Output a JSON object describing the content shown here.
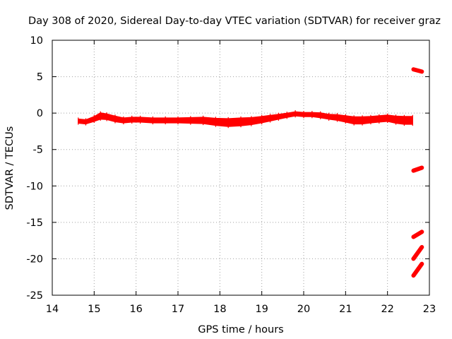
{
  "chart_data": {
    "type": "scatter",
    "title": "Day 308 of 2020, Sidereal Day-to-day VTEC variation (SDTVAR) for receiver graz",
    "xlabel": "GPS time / hours",
    "ylabel": "SDTVAR / TECUs",
    "xlim": [
      14,
      23
    ],
    "ylim": [
      -25,
      10
    ],
    "xticks": [
      14,
      15,
      16,
      17,
      18,
      19,
      20,
      21,
      22,
      23
    ],
    "yticks": [
      10,
      5,
      0,
      -5,
      -10,
      -15,
      -20,
      -25
    ],
    "xtick_labels": [
      "14",
      "15",
      "16",
      "17",
      "18",
      "19",
      "20",
      "21",
      "22",
      "23"
    ],
    "ytick_labels": [
      "10",
      "5",
      "0",
      "-5",
      "-10",
      "-15",
      "-20",
      "-25"
    ],
    "grid": true,
    "grid_style": "dotted",
    "marker_color": "#ff0000",
    "series": [
      {
        "name": "main band",
        "x": [
          14.62,
          14.8,
          15.0,
          15.15,
          15.3,
          15.5,
          15.7,
          15.9,
          16.1,
          16.4,
          16.7,
          17.0,
          17.3,
          17.6,
          17.9,
          18.2,
          18.5,
          18.75,
          19.0,
          19.2,
          19.4,
          19.6,
          19.8,
          20.0,
          20.2,
          20.4,
          20.6,
          20.8,
          21.0,
          21.2,
          21.4,
          21.6,
          21.8,
          22.0,
          22.2,
          22.4,
          22.6
        ],
        "y": [
          -1.1,
          -1.2,
          -0.8,
          -0.4,
          -0.5,
          -0.8,
          -1.0,
          -0.9,
          -0.9,
          -1.0,
          -1.0,
          -1.0,
          -1.0,
          -1.0,
          -1.2,
          -1.3,
          -1.2,
          -1.1,
          -0.9,
          -0.7,
          -0.5,
          -0.3,
          -0.1,
          -0.2,
          -0.2,
          -0.3,
          -0.5,
          -0.6,
          -0.8,
          -1.0,
          -1.0,
          -0.9,
          -0.8,
          -0.7,
          -0.9,
          -1.0,
          -1.0
        ],
        "half_width": [
          0.3,
          0.3,
          0.35,
          0.45,
          0.4,
          0.4,
          0.35,
          0.35,
          0.35,
          0.35,
          0.35,
          0.35,
          0.4,
          0.45,
          0.5,
          0.55,
          0.55,
          0.5,
          0.45,
          0.4,
          0.35,
          0.3,
          0.3,
          0.3,
          0.3,
          0.35,
          0.35,
          0.4,
          0.45,
          0.5,
          0.5,
          0.45,
          0.45,
          0.45,
          0.5,
          0.55,
          0.55
        ]
      }
    ],
    "segments": [
      {
        "x": [
          22.62,
          22.82
        ],
        "y": [
          6.0,
          5.7
        ]
      },
      {
        "x": [
          22.62,
          22.82
        ],
        "y": [
          -7.9,
          -7.5
        ]
      },
      {
        "x": [
          22.62,
          22.82
        ],
        "y": [
          -17.0,
          -16.3
        ]
      },
      {
        "x": [
          22.62,
          22.82
        ],
        "y": [
          -20.0,
          -18.4
        ]
      },
      {
        "x": [
          22.62,
          22.82
        ],
        "y": [
          -22.3,
          -20.7
        ]
      }
    ]
  }
}
